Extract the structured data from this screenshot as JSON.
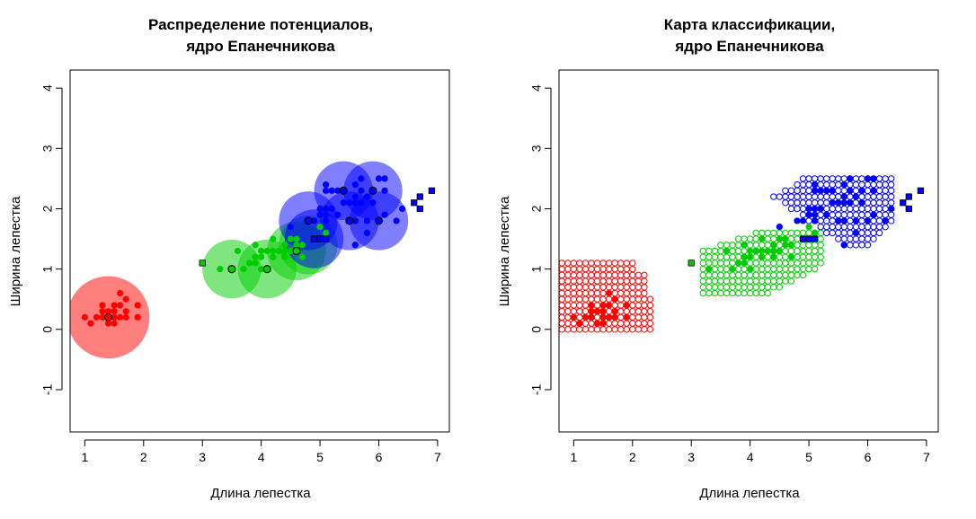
{
  "chart_data": [
    {
      "type": "scatter",
      "title": [
        "Распределение потенциалов,",
        "ядро Епанечникова"
      ],
      "xlabel": "Длина лепестка",
      "ylabel": "Ширина лепестка",
      "xlim": [
        0.75,
        7.2
      ],
      "ylim": [
        -1.7,
        4.3
      ],
      "xticks": [
        "1",
        "2",
        "3",
        "4",
        "5",
        "6",
        "7"
      ],
      "yticks": [
        "-1",
        "0",
        "1",
        "2",
        "3",
        "4"
      ],
      "colors": {
        "setosa": "#ff0000",
        "versicolor": "#00cd00",
        "virginica": "#0000ff"
      },
      "circles": [
        {
          "class": "setosa",
          "x": 1.4,
          "y": 0.2,
          "r": 0.7
        },
        {
          "class": "versicolor",
          "x": 3.5,
          "y": 1.0,
          "r": 0.5
        },
        {
          "class": "versicolor",
          "x": 4.1,
          "y": 1.0,
          "r": 0.5
        },
        {
          "class": "versicolor",
          "x": 4.6,
          "y": 1.3,
          "r": 0.5
        },
        {
          "class": "versicolor",
          "x": 4.8,
          "y": 1.4,
          "r": 0.5
        },
        {
          "class": "virginica",
          "x": 4.8,
          "y": 1.8,
          "r": 0.5
        },
        {
          "class": "virginica",
          "x": 4.9,
          "y": 1.5,
          "r": 0.5
        },
        {
          "class": "virginica",
          "x": 5.4,
          "y": 2.3,
          "r": 0.5
        },
        {
          "class": "virginica",
          "x": 5.5,
          "y": 1.8,
          "r": 0.5
        },
        {
          "class": "virginica",
          "x": 5.9,
          "y": 2.3,
          "r": 0.5
        },
        {
          "class": "virginica",
          "x": 6.0,
          "y": 1.8,
          "r": 0.5
        }
      ],
      "points": {
        "setosa": [
          [
            1.0,
            0.2
          ],
          [
            1.1,
            0.1
          ],
          [
            1.2,
            0.2
          ],
          [
            1.3,
            0.2
          ],
          [
            1.3,
            0.3
          ],
          [
            1.3,
            0.4
          ],
          [
            1.4,
            0.1
          ],
          [
            1.4,
            0.3
          ],
          [
            1.5,
            0.1
          ],
          [
            1.5,
            0.2
          ],
          [
            1.5,
            0.3
          ],
          [
            1.5,
            0.4
          ],
          [
            1.6,
            0.2
          ],
          [
            1.6,
            0.4
          ],
          [
            1.6,
            0.6
          ],
          [
            1.7,
            0.2
          ],
          [
            1.7,
            0.3
          ],
          [
            1.7,
            0.5
          ],
          [
            1.9,
            0.2
          ],
          [
            1.9,
            0.4
          ]
        ],
        "versicolor": [
          [
            3.3,
            1.0
          ],
          [
            3.6,
            1.3
          ],
          [
            3.7,
            1.0
          ],
          [
            3.8,
            1.1
          ],
          [
            3.9,
            1.1
          ],
          [
            3.9,
            1.2
          ],
          [
            3.9,
            1.4
          ],
          [
            4.0,
            1.0
          ],
          [
            4.0,
            1.2
          ],
          [
            4.0,
            1.3
          ],
          [
            4.1,
            1.3
          ],
          [
            4.2,
            1.2
          ],
          [
            4.2,
            1.3
          ],
          [
            4.2,
            1.5
          ],
          [
            4.3,
            1.3
          ],
          [
            4.4,
            1.2
          ],
          [
            4.4,
            1.3
          ],
          [
            4.4,
            1.4
          ],
          [
            4.5,
            1.3
          ],
          [
            4.5,
            1.5
          ],
          [
            4.6,
            1.4
          ],
          [
            4.6,
            1.5
          ],
          [
            4.7,
            1.2
          ],
          [
            4.7,
            1.4
          ],
          [
            4.8,
            1.8
          ],
          [
            4.9,
            1.5
          ],
          [
            5.0,
            1.7
          ],
          [
            5.1,
            1.6
          ]
        ],
        "virginica": [
          [
            4.5,
            1.7
          ],
          [
            4.8,
            1.8
          ],
          [
            4.9,
            1.8
          ],
          [
            5.0,
            1.9
          ],
          [
            5.0,
            2.0
          ],
          [
            5.1,
            1.8
          ],
          [
            5.1,
            1.9
          ],
          [
            5.1,
            2.0
          ],
          [
            5.1,
            2.3
          ],
          [
            5.1,
            2.4
          ],
          [
            5.2,
            2.0
          ],
          [
            5.2,
            2.3
          ],
          [
            5.3,
            1.9
          ],
          [
            5.3,
            2.3
          ],
          [
            5.4,
            2.1
          ],
          [
            5.4,
            2.3
          ],
          [
            5.5,
            1.8
          ],
          [
            5.5,
            2.1
          ],
          [
            5.6,
            1.4
          ],
          [
            5.6,
            1.8
          ],
          [
            5.6,
            2.1
          ],
          [
            5.6,
            2.2
          ],
          [
            5.6,
            2.4
          ],
          [
            5.7,
            2.1
          ],
          [
            5.7,
            2.3
          ],
          [
            5.7,
            2.5
          ],
          [
            5.8,
            1.6
          ],
          [
            5.8,
            1.8
          ],
          [
            5.8,
            2.2
          ],
          [
            5.9,
            2.1
          ],
          [
            5.9,
            2.3
          ],
          [
            6.0,
            1.8
          ],
          [
            6.0,
            2.5
          ],
          [
            6.1,
            1.9
          ],
          [
            6.1,
            2.3
          ],
          [
            6.1,
            2.5
          ],
          [
            6.3,
            1.8
          ],
          [
            6.4,
            2.0
          ]
        ]
      },
      "special": [
        {
          "shape": "square",
          "x": 3.0,
          "y": 1.1,
          "color": "#00cd00"
        },
        {
          "shape": "square",
          "x": 4.9,
          "y": 1.5,
          "color": "#0000ff"
        },
        {
          "shape": "square",
          "x": 5.0,
          "y": 1.5,
          "color": "#0000ff"
        },
        {
          "shape": "square",
          "x": 5.1,
          "y": 1.5,
          "color": "#0000ff"
        },
        {
          "shape": "square",
          "x": 6.6,
          "y": 2.1,
          "color": "#0000ff"
        },
        {
          "shape": "square",
          "x": 6.7,
          "y": 2.0,
          "color": "#0000ff"
        },
        {
          "shape": "square",
          "x": 6.7,
          "y": 2.2,
          "color": "#0000ff"
        },
        {
          "shape": "square",
          "x": 6.9,
          "y": 2.3,
          "color": "#0000ff"
        }
      ],
      "prototypes": [
        {
          "class": "setosa",
          "x": 1.4,
          "y": 0.2
        },
        {
          "class": "versicolor",
          "x": 3.5,
          "y": 1.0
        },
        {
          "class": "versicolor",
          "x": 4.1,
          "y": 1.0
        },
        {
          "class": "versicolor",
          "x": 4.6,
          "y": 1.3
        },
        {
          "class": "virginica",
          "x": 4.8,
          "y": 1.8
        },
        {
          "class": "virginica",
          "x": 5.4,
          "y": 2.3
        },
        {
          "class": "virginica",
          "x": 5.5,
          "y": 1.8
        },
        {
          "class": "virginica",
          "x": 5.9,
          "y": 2.3
        },
        {
          "class": "virginica",
          "x": 6.0,
          "y": 1.8
        }
      ]
    },
    {
      "type": "scatter",
      "title": [
        "Карта классификации,",
        "ядро Епанечникова"
      ],
      "xlabel": "Длина лепестка",
      "ylabel": "Ширина лепестка",
      "xlim": [
        0.75,
        7.2
      ],
      "ylim": [
        -1.7,
        4.3
      ],
      "xticks": [
        "1",
        "2",
        "3",
        "4",
        "5",
        "6",
        "7"
      ],
      "yticks": [
        "-1",
        "0",
        "1",
        "2",
        "3",
        "4"
      ],
      "grid_step": 0.1,
      "regions": [
        {
          "class": "setosa",
          "x_from": 0.8,
          "x_to": 2.3,
          "y_from": 0.0,
          "y_to": 1.1,
          "cut": "top-right"
        },
        {
          "class": "versicolor",
          "x_from": 3.2,
          "x_to": 5.2,
          "y_from": 0.6,
          "y_to": 1.6,
          "cut": "diagonal"
        },
        {
          "class": "virginica",
          "x_from": 4.4,
          "x_to": 6.4,
          "y_from": 1.4,
          "y_to": 2.5,
          "cut": "diagonal"
        }
      ],
      "points_same_as_first_chart": true
    }
  ]
}
